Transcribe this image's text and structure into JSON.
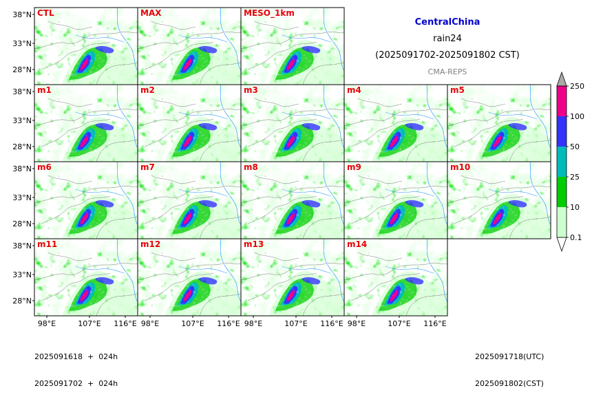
{
  "header": {
    "region": "CentralChina",
    "variable": "rain24",
    "period": "(2025091702-2025091802 CST)",
    "source": "CMA-REPS",
    "region_color": "#0000cc",
    "source_color": "#808080"
  },
  "panels": {
    "rows": [
      [
        "CTL",
        "MAX",
        "MESO_1km"
      ],
      [
        "m1",
        "m2",
        "m3",
        "m4",
        "m5"
      ],
      [
        "m6",
        "m7",
        "m8",
        "m9",
        "m10"
      ],
      [
        "m11",
        "m12",
        "m13",
        "m14"
      ]
    ],
    "label_color": "#e8000b"
  },
  "axes": {
    "lat_ticks": [
      "38°N",
      "33°N",
      "28°N"
    ],
    "lon_ticks": [
      "98°E",
      "107°E",
      "116°E"
    ]
  },
  "colorbar": {
    "levels": [
      "0.1",
      "10",
      "25",
      "50",
      "100",
      "250"
    ],
    "colors": [
      "#ccffcc",
      "#00cc00",
      "#00bbbb",
      "#3333ff",
      "#ee0088"
    ],
    "over_color": "#aaaaaa",
    "under_color": "#ffffff"
  },
  "footer": {
    "left_line1": "2025091618  +  024h",
    "left_line2": "2025091702  +  024h",
    "right_line1": "2025091718(UTC)",
    "right_line2": "2025091802(CST)"
  }
}
